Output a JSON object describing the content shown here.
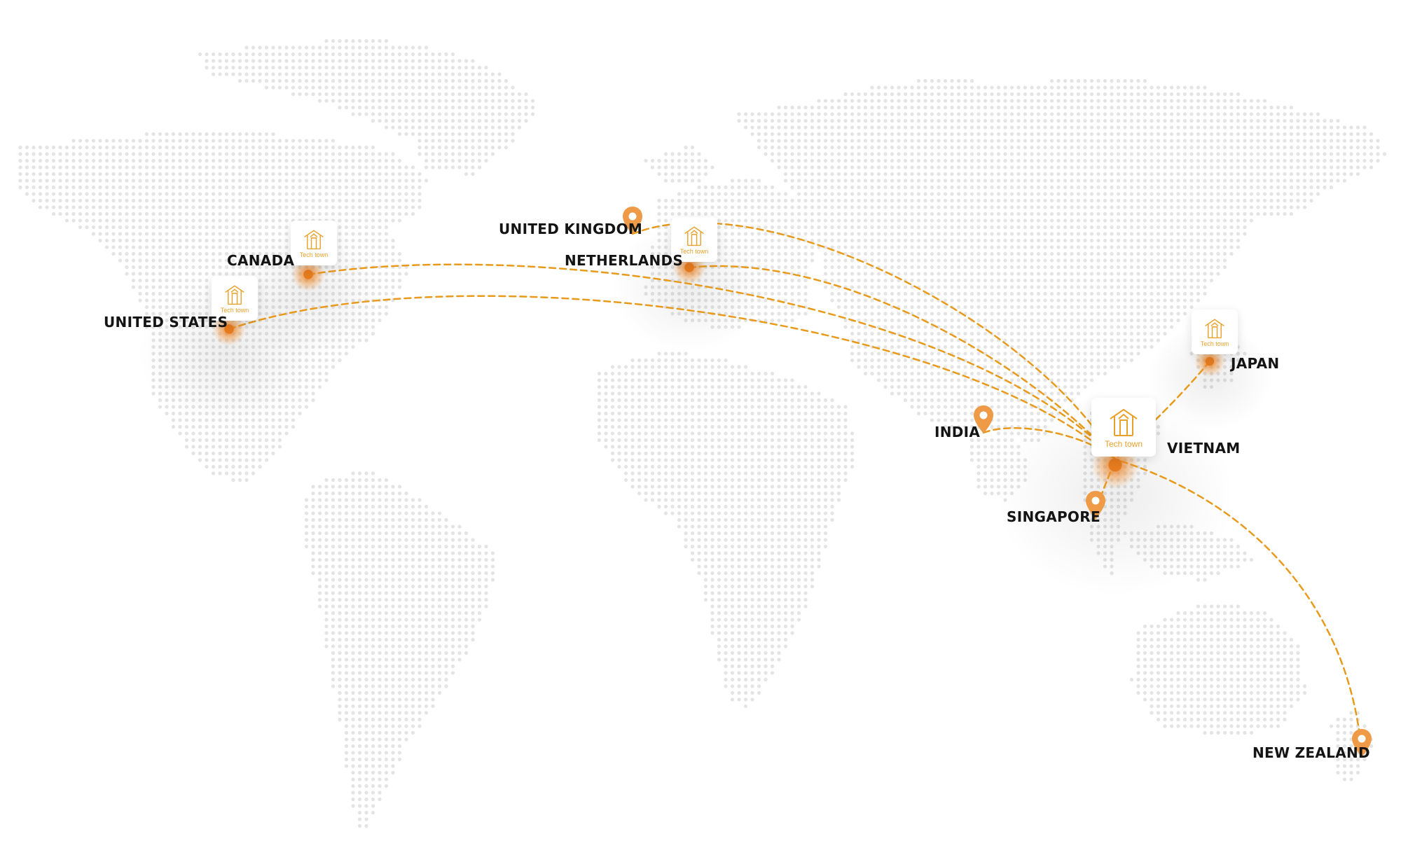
{
  "brand_name": "Tech town",
  "colors": {
    "route": "#e89a1c",
    "pin": "#ee9a47",
    "dot": "#e4e4e4",
    "label": "#141414",
    "brand": "#e8a12a"
  },
  "hub": {
    "name": "VIETNAM"
  },
  "offices": [
    {
      "id": "canada",
      "name": "CANADA"
    },
    {
      "id": "united-states",
      "name": "UNITED STATES"
    },
    {
      "id": "netherlands",
      "name": "NETHERLANDS"
    },
    {
      "id": "japan",
      "name": "JAPAN"
    }
  ],
  "partner_locations": [
    {
      "id": "united-kingdom",
      "name": "UNITED KINGDOM"
    },
    {
      "id": "india",
      "name": "INDIA"
    },
    {
      "id": "singapore",
      "name": "SINGAPORE"
    },
    {
      "id": "new-zealand",
      "name": "NEW ZEALAND"
    }
  ],
  "icons": {
    "office": "tech-town-logo-icon",
    "partner": "map-pin-icon"
  }
}
